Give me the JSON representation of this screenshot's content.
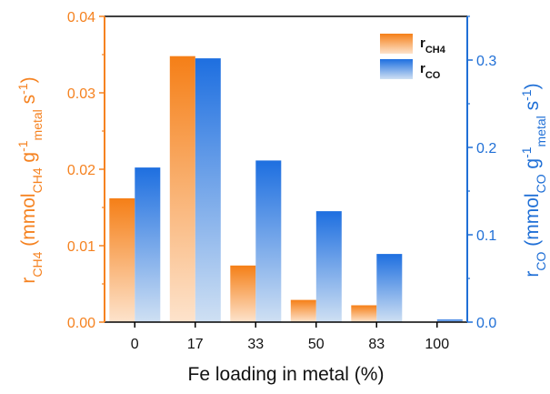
{
  "chart_data": {
    "type": "bar",
    "categories": [
      "0",
      "17",
      "33",
      "50",
      "83",
      "100"
    ],
    "xlabel": "Fe loading in metal (%)",
    "ylabel_left": {
      "main": "r",
      "sub": "CH4",
      "text": " (mmol",
      "sub2": "CH4",
      "text2": " g",
      "sup": "-1",
      "sub3": "metal",
      "text3": " s",
      "sup2": "-1",
      "close": ")"
    },
    "ylabel_right": {
      "main": "r",
      "sub": "CO",
      "text": " (mmol",
      "sub2": "CO",
      "text2": " g",
      "sup": "-1",
      "sub3": "metal",
      "text3": " s",
      "sup2": "-1",
      "close": ")"
    },
    "y_left": {
      "lim": [
        0,
        0.04
      ],
      "ticks": [
        "0.00",
        "0.01",
        "0.02",
        "0.03",
        "0.04"
      ],
      "color": "#f58220"
    },
    "y_right": {
      "lim": [
        0,
        0.35
      ],
      "ticks": [
        "0.0",
        "0.1",
        "0.2",
        "0.3"
      ],
      "color": "#1f6fd6"
    },
    "series": [
      {
        "name": "CH4",
        "axis": "left",
        "values": [
          0.0162,
          0.0348,
          0.0074,
          0.0029,
          0.0022,
          0.0
        ],
        "color_top": "#f57f17",
        "color_bottom": "#fde3cc"
      },
      {
        "name": "CO",
        "axis": "right",
        "values": [
          0.177,
          0.302,
          0.185,
          0.127,
          0.078,
          0.003
        ],
        "color_top": "#1e6fe0",
        "color_bottom": "#cfe0f3"
      }
    ],
    "legend": {
      "placement": "top-right",
      "entries": [
        {
          "main": "r",
          "sub": "CH4"
        },
        {
          "main": "r",
          "sub": "CO"
        }
      ]
    },
    "grid": false
  }
}
